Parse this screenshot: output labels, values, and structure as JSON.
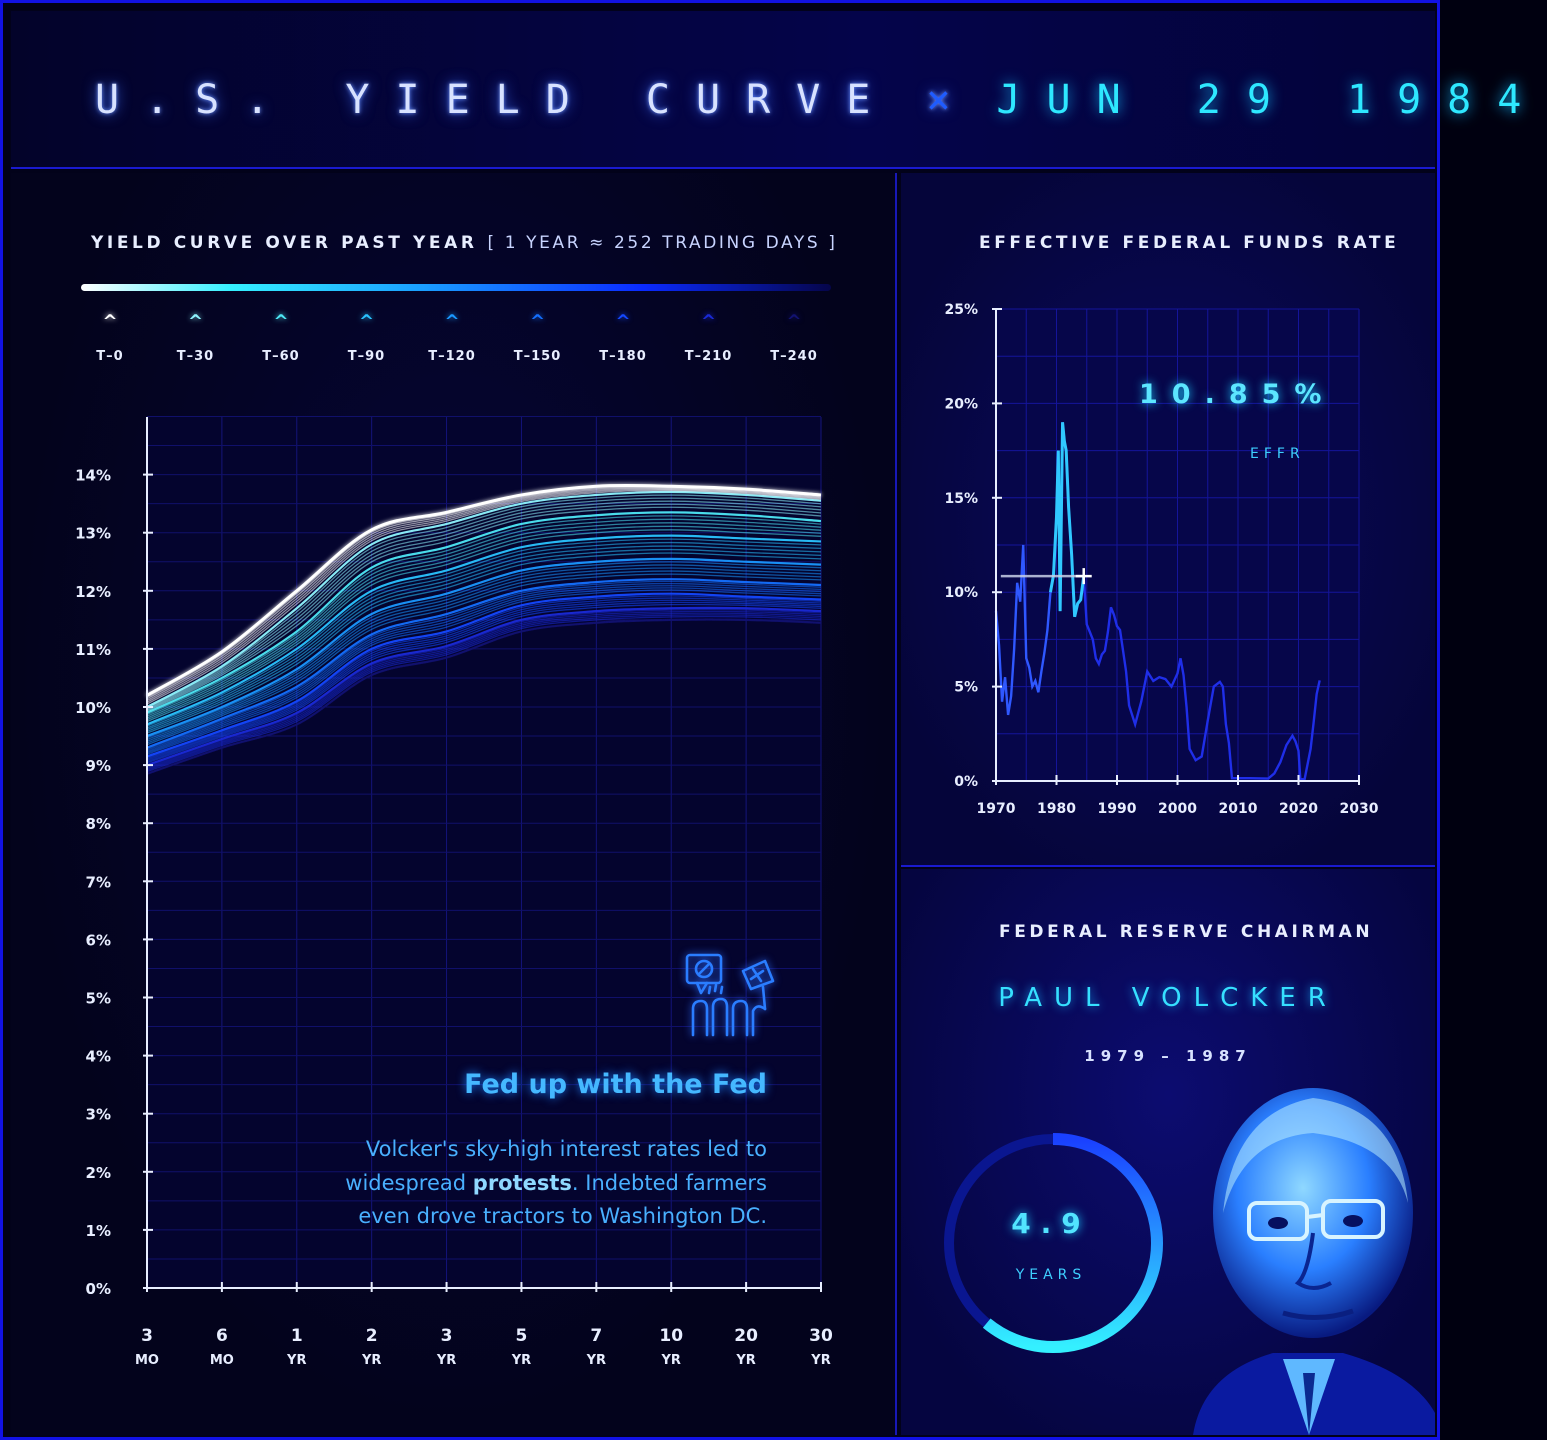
{
  "header": {
    "title": "U.S. YIELD CURVE",
    "separator": "×",
    "date": "JUN 29 1984"
  },
  "yield_section": {
    "title": "YIELD CURVE OVER PAST YEAR",
    "subtitle": "[ 1 YEAR ≈ 252 TRADING DAYS ]",
    "legend": [
      {
        "label": "T–0",
        "color": "#ffffff"
      },
      {
        "label": "T–30",
        "color": "#8ff6ff"
      },
      {
        "label": "T–60",
        "color": "#4ee8f5"
      },
      {
        "label": "T–90",
        "color": "#2ac4ff"
      },
      {
        "label": "T–120",
        "color": "#1a98ff"
      },
      {
        "label": "T–150",
        "color": "#1470ff"
      },
      {
        "label": "T–180",
        "color": "#1448ff"
      },
      {
        "label": "T–210",
        "color": "#1a2ad8"
      },
      {
        "label": "T–240",
        "color": "#121270"
      }
    ],
    "callout": {
      "title": "Fed up with the Fed",
      "body_before": "Volcker's sky-high interest rates led to widespread ",
      "body_bold": "protests",
      "body_after": ". Indebted farmers even drove tractors to Washington DC."
    }
  },
  "effr_section": {
    "title": "EFFECTIVE FEDERAL FUNDS RATE",
    "value": "10.85%",
    "value_label": "EFFR"
  },
  "chair_section": {
    "title": "FEDERAL RESERVE CHAIRMAN",
    "name": "PAUL VOLCKER",
    "years": "1979 – 1987",
    "tenure_value": "4.9",
    "tenure_unit": "YEARS",
    "tenure_fraction": 0.61
  },
  "colors": {
    "background": "#02021a",
    "border": "#1212e6",
    "accent_cyan": "#36e0ff",
    "accent_blue": "#1f5cff"
  },
  "chart_data": [
    {
      "type": "line",
      "title": "YIELD CURVE OVER PAST YEAR",
      "x": [
        "3 MO",
        "6 MO",
        "1 YR",
        "2 YR",
        "3 YR",
        "5 YR",
        "7 YR",
        "10 YR",
        "20 YR",
        "30 YR"
      ],
      "x_ticks": [
        {
          "top": "3",
          "bottom": "MO"
        },
        {
          "top": "6",
          "bottom": "MO"
        },
        {
          "top": "1",
          "bottom": "YR"
        },
        {
          "top": "2",
          "bottom": "YR"
        },
        {
          "top": "3",
          "bottom": "YR"
        },
        {
          "top": "5",
          "bottom": "YR"
        },
        {
          "top": "7",
          "bottom": "YR"
        },
        {
          "top": "10",
          "bottom": "YR"
        },
        {
          "top": "20",
          "bottom": "YR"
        },
        {
          "top": "30",
          "bottom": "YR"
        }
      ],
      "y_ticks": [
        "0%",
        "1%",
        "2%",
        "3%",
        "4%",
        "5%",
        "6%",
        "7%",
        "8%",
        "9%",
        "10%",
        "11%",
        "12%",
        "13%",
        "14%"
      ],
      "ylim": [
        0,
        15
      ],
      "grid": true,
      "series": [
        {
          "name": "T–0",
          "values": [
            10.2,
            10.95,
            12.0,
            13.05,
            13.35,
            13.65,
            13.8,
            13.8,
            13.75,
            13.65
          ]
        },
        {
          "name": "T–30",
          "values": [
            10.0,
            10.7,
            11.7,
            12.8,
            13.15,
            13.5,
            13.65,
            13.7,
            13.65,
            13.55
          ]
        },
        {
          "name": "T–60",
          "values": [
            9.9,
            10.5,
            11.3,
            12.4,
            12.75,
            13.15,
            13.3,
            13.35,
            13.3,
            13.2
          ]
        },
        {
          "name": "T–90",
          "values": [
            9.7,
            10.25,
            11.0,
            12.0,
            12.35,
            12.75,
            12.9,
            12.95,
            12.9,
            12.85
          ]
        },
        {
          "name": "T–120",
          "values": [
            9.5,
            10.0,
            10.65,
            11.6,
            11.95,
            12.35,
            12.5,
            12.55,
            12.5,
            12.45
          ]
        },
        {
          "name": "T–150",
          "values": [
            9.3,
            9.8,
            10.35,
            11.25,
            11.6,
            12.0,
            12.15,
            12.2,
            12.15,
            12.1
          ]
        },
        {
          "name": "T–180",
          "values": [
            9.15,
            9.6,
            10.1,
            11.0,
            11.3,
            11.75,
            11.9,
            11.95,
            11.9,
            11.85
          ]
        },
        {
          "name": "T–210",
          "values": [
            9.0,
            9.45,
            9.9,
            10.75,
            11.05,
            11.5,
            11.65,
            11.7,
            11.7,
            11.65
          ]
        },
        {
          "name": "T–240",
          "values": [
            8.85,
            9.3,
            9.7,
            10.55,
            10.85,
            11.3,
            11.45,
            11.5,
            11.5,
            11.45
          ]
        }
      ]
    },
    {
      "type": "line",
      "title": "EFFECTIVE FEDERAL FUNDS RATE",
      "xlim": [
        1970,
        2030
      ],
      "ylim": [
        0,
        25
      ],
      "x_ticks": [
        "1970",
        "1980",
        "1990",
        "2000",
        "2010",
        "2020",
        "2030"
      ],
      "y_ticks": [
        "0%",
        "5%",
        "10%",
        "15%",
        "20%",
        "25%"
      ],
      "grid": true,
      "highlight": {
        "x": 1984.5,
        "y": 10.85
      },
      "series": [
        {
          "name": "EFFR",
          "x": [
            1970.0,
            1970.5,
            1971.0,
            1971.5,
            1972.0,
            1972.5,
            1973.0,
            1973.5,
            1974.0,
            1974.5,
            1975.0,
            1975.5,
            1976.0,
            1976.5,
            1977.0,
            1977.5,
            1978.0,
            1978.5,
            1979.0,
            1979.5,
            1980.0,
            1980.3,
            1980.6,
            1981.0,
            1981.3,
            1981.6,
            1982.0,
            1982.5,
            1983.0,
            1983.5,
            1984.0,
            1984.5,
            1985.0,
            1985.5,
            1986.0,
            1986.5,
            1987.0,
            1987.5,
            1988.0,
            1988.5,
            1989.0,
            1989.5,
            1990.0,
            1990.5,
            1991.0,
            1991.5,
            1992.0,
            1993.0,
            1994.0,
            1995.0,
            1996.0,
            1997.0,
            1998.0,
            1999.0,
            2000.0,
            2000.5,
            2001.0,
            2001.5,
            2002.0,
            2003.0,
            2004.0,
            2005.0,
            2006.0,
            2007.0,
            2007.5,
            2008.0,
            2008.5,
            2009.0,
            2012.0,
            2015.0,
            2016.0,
            2017.0,
            2018.0,
            2019.0,
            2019.5,
            2020.0,
            2020.3,
            2021.0,
            2022.0,
            2022.5,
            2023.0,
            2023.5
          ],
          "y": [
            9.0,
            7.2,
            4.2,
            5.5,
            3.5,
            4.5,
            7.0,
            10.5,
            9.5,
            12.5,
            6.5,
            6.0,
            5.0,
            5.3,
            4.7,
            5.8,
            6.8,
            8.0,
            10.0,
            10.9,
            14.0,
            17.5,
            9.0,
            19.0,
            18.0,
            17.5,
            14.5,
            12.0,
            8.7,
            9.4,
            9.6,
            10.85,
            8.3,
            7.9,
            7.5,
            6.5,
            6.2,
            6.7,
            6.9,
            7.9,
            9.2,
            8.8,
            8.2,
            8.0,
            6.9,
            5.8,
            4.0,
            3.0,
            4.2,
            5.8,
            5.3,
            5.5,
            5.4,
            5.0,
            5.7,
            6.5,
            5.6,
            3.9,
            1.7,
            1.1,
            1.3,
            3.2,
            5.0,
            5.25,
            5.0,
            3.0,
            2.0,
            0.15,
            0.15,
            0.13,
            0.4,
            1.0,
            1.9,
            2.4,
            2.1,
            1.6,
            0.1,
            0.08,
            1.7,
            3.1,
            4.6,
            5.33
          ]
        }
      ]
    }
  ]
}
